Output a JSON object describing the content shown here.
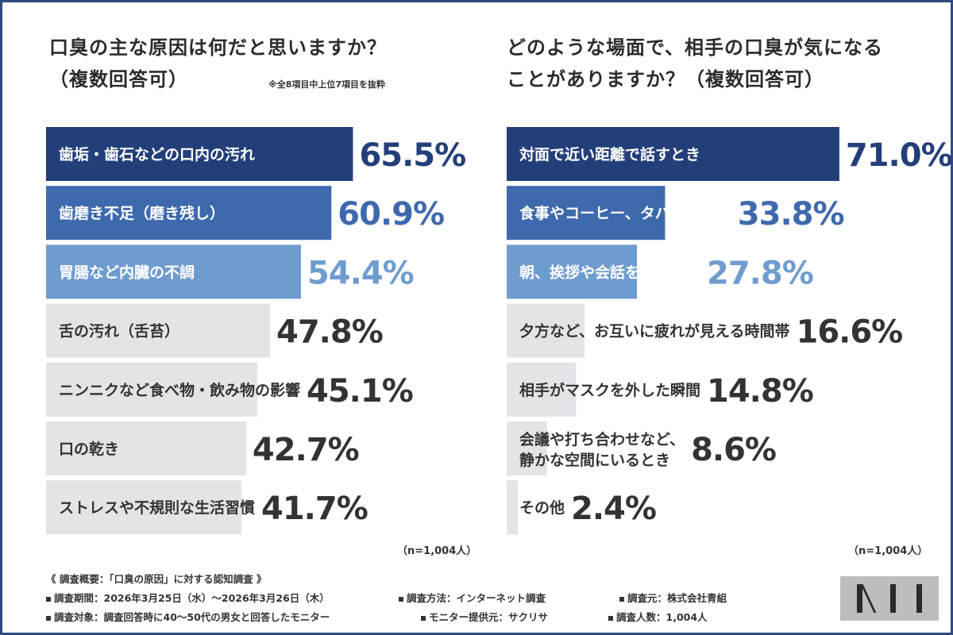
{
  "left": {
    "title_line1": "口臭の主な原因は何だと思いますか？",
    "title_line2": "（複数回答可）",
    "note": "※全8項目中上位7項目を抜粋",
    "n_label": "（n=1,004人）"
  },
  "right": {
    "title_line1": "どのような場面で、相手の口臭が気になる",
    "title_line2": "ことがありますか？（複数回答可）",
    "n_label": "（n=1,004人）"
  },
  "footer": {
    "heading": "《 調査概要：「口臭の原因」に対する認知調査 》",
    "period": "調査期間：2026年3月25日（水）～2026年3月26日（木）",
    "method": "調査方法：インターネット調査",
    "source": "調査元：株式会社青組",
    "target": "調査対象：調査回答時に40～50代の男女と回答したモニター",
    "provider": "モニター提供元：サクリサ",
    "count": "調査人数：1,004人"
  },
  "colors": {
    "rank1": "#233f7a",
    "rank2": "#3f69ad",
    "rank3": "#6f9ccf",
    "rest": "#e4e3e8",
    "rank1_value": "#233f7a",
    "rank2_value": "#3f69ad",
    "rank3_value": "#6f9ccf",
    "rest_value": "#333333",
    "frame": "#2f4a7e"
  },
  "chart_data": [
    {
      "type": "bar",
      "orientation": "horizontal",
      "title": "口臭の主な原因は何だと思いますか？（複数回答可）",
      "categories": [
        "歯垢・歯石などの口内の汚れ",
        "歯磨き不足（磨き残し）",
        "胃腸など内臓の不調",
        "舌の汚れ（舌苔）",
        "ニンニクなど食べ物・飲み物の影響",
        "口の乾き",
        "ストレスや不規則な生活習慣"
      ],
      "values": [
        65.5,
        60.9,
        54.4,
        47.8,
        45.1,
        42.7,
        41.7
      ],
      "value_labels": [
        "65.5%",
        "60.9%",
        "54.4%",
        "47.8%",
        "45.1%",
        "42.7%",
        "41.7%"
      ],
      "unit": "%",
      "xlim": [
        0,
        100
      ]
    },
    {
      "type": "bar",
      "orientation": "horizontal",
      "title": "どのような場面で、相手の口臭が気になることがありますか？（複数回答可）",
      "categories": [
        "対面で近い距離で話すとき",
        "食事やコーヒー、タバコの直後",
        "朝、挨拶や会話をするとき",
        "夕方など、お互いに疲れが見える時間帯",
        "相手がマスクを外した瞬間",
        "会議や打ち合わせなど、\n静かな空間にいるとき",
        "その他"
      ],
      "values": [
        71.0,
        33.8,
        27.8,
        16.6,
        14.8,
        8.6,
        2.4
      ],
      "value_labels": [
        "71.0%",
        "33.8%",
        "27.8%",
        "16.6%",
        "14.8%",
        "8.6%",
        "2.4%"
      ],
      "unit": "%",
      "xlim": [
        0,
        100
      ]
    }
  ]
}
